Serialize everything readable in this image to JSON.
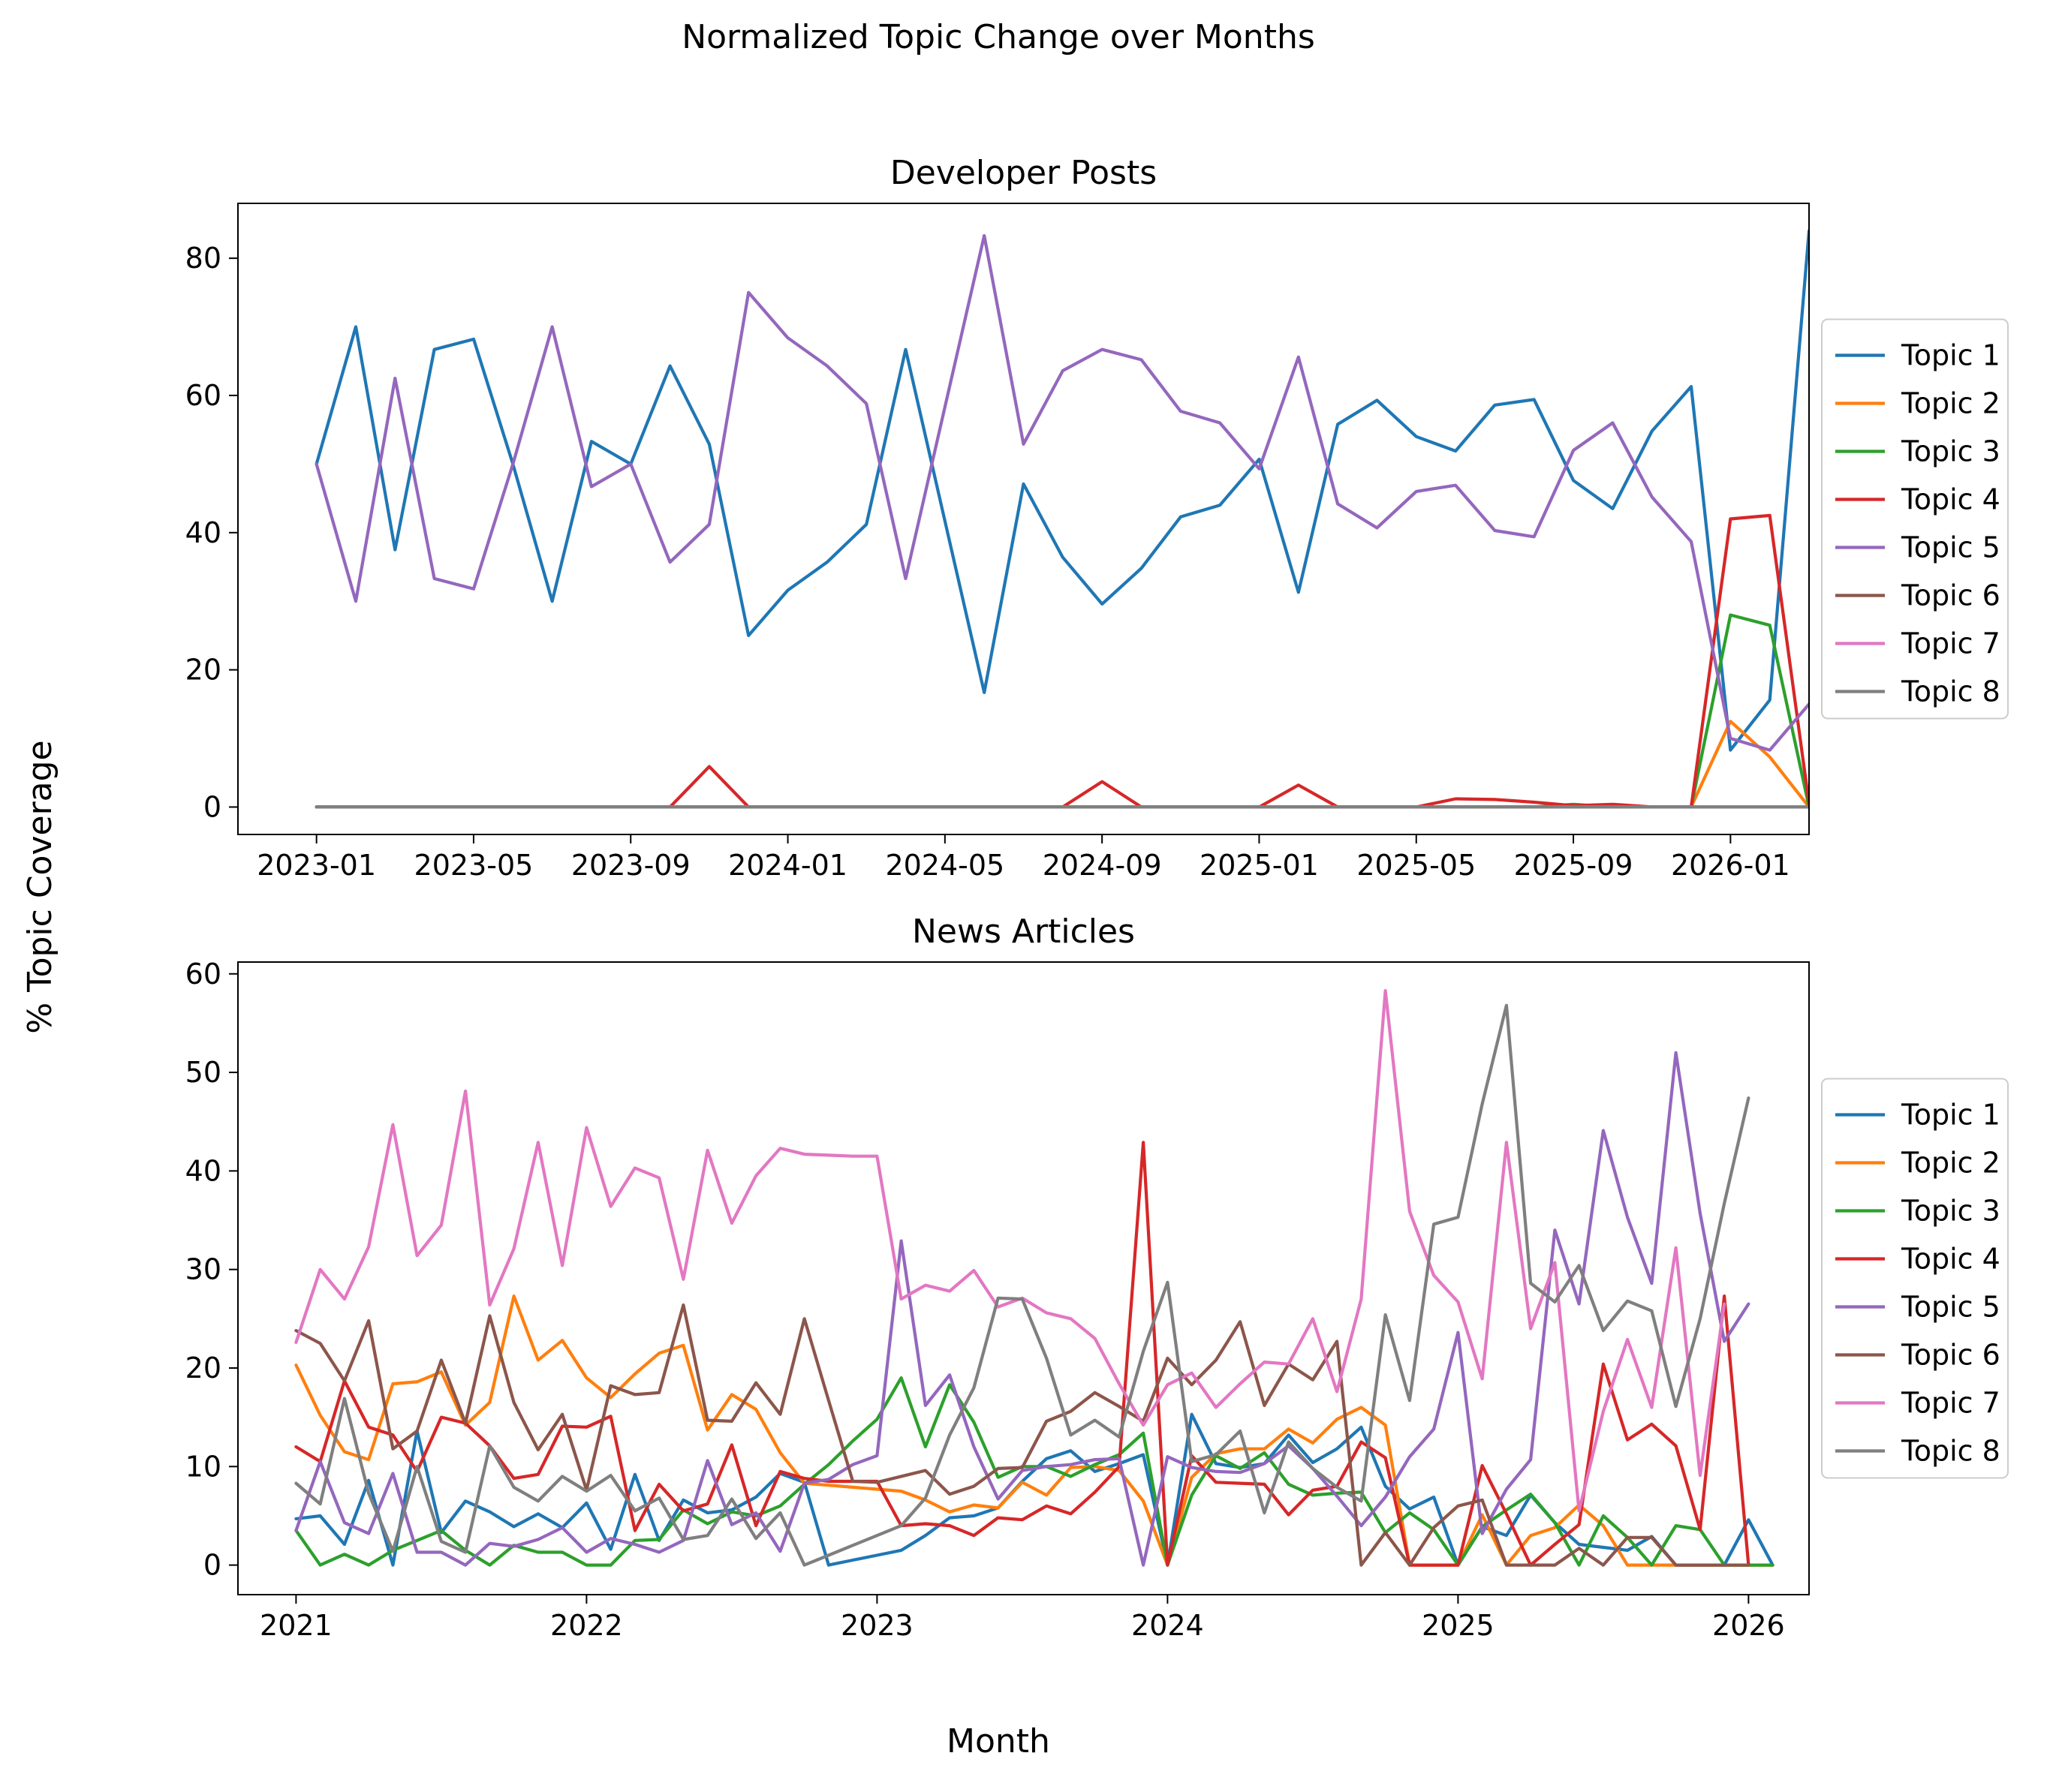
{
  "figure": {
    "suptitle": "Normalized Topic Change over Months",
    "xlabel": "Month",
    "ylabel": "% Topic Coverage"
  },
  "colors": [
    "#1f77b4",
    "#ff7f0e",
    "#2ca02c",
    "#d62728",
    "#9467bd",
    "#8c564b",
    "#e377c2",
    "#7f7f7f"
  ],
  "chart_data": [
    {
      "type": "line",
      "title": "Developer Posts",
      "legend_position": "right",
      "x_start": "2023-01",
      "x_step": "month",
      "xlim": [
        -2,
        38
      ],
      "ylim": [
        -4,
        88
      ],
      "xticks": [
        {
          "index": 0,
          "label": "2023-01"
        },
        {
          "index": 4,
          "label": "2023-05"
        },
        {
          "index": 8,
          "label": "2023-09"
        },
        {
          "index": 12,
          "label": "2024-01"
        },
        {
          "index": 16,
          "label": "2024-05"
        },
        {
          "index": 20,
          "label": "2024-09"
        },
        {
          "index": 24,
          "label": "2025-01"
        },
        {
          "index": 28,
          "label": "2025-05"
        },
        {
          "index": 32,
          "label": "2025-09"
        },
        {
          "index": 36,
          "label": "2026-01"
        }
      ],
      "yticks": [
        0,
        20,
        40,
        60,
        80
      ],
      "series": [
        {
          "name": "Topic 1",
          "values": [
            50,
            70,
            37.5,
            66.7,
            68.2,
            50,
            30,
            53.3,
            50,
            64.3,
            52.9,
            25,
            31.6,
            35.7,
            41.2,
            66.7,
            41.7,
            16.7,
            47.1,
            36.4,
            29.6,
            34.8,
            42.3,
            44,
            50.7,
            31.3,
            55.8,
            59.3,
            54,
            51.9,
            58.6,
            59.4,
            47.6,
            43.5,
            54.8,
            61.3,
            8.3,
            15.6,
            84
          ]
        },
        {
          "name": "Topic 2",
          "values": [
            0,
            0,
            0,
            0,
            0,
            0,
            0,
            0,
            0,
            0,
            0,
            0,
            0,
            0,
            0,
            0,
            0,
            0,
            0,
            0,
            0,
            0,
            0,
            0,
            0,
            0,
            0,
            0,
            0,
            0,
            0,
            0,
            0,
            0,
            0,
            0,
            12.5,
            7.3,
            0
          ]
        },
        {
          "name": "Topic 3",
          "values": [
            0,
            0,
            0,
            0,
            0,
            0,
            0,
            0,
            0,
            0,
            0,
            0,
            0,
            0,
            0,
            0,
            0,
            0,
            0,
            0,
            0,
            0,
            0,
            0,
            0,
            0,
            0,
            0,
            0,
            0,
            0,
            0,
            0.4,
            0,
            0,
            0,
            28,
            26.5,
            0
          ]
        },
        {
          "name": "Topic 4",
          "values": [
            0,
            0,
            0,
            0,
            0,
            0,
            0,
            0,
            0,
            0,
            5.9,
            0,
            0,
            0,
            0,
            0,
            0,
            0,
            0,
            0,
            3.7,
            0,
            0,
            0,
            0,
            3.2,
            0,
            0,
            0,
            1.2,
            1.1,
            0.7,
            0.2,
            0.4,
            0,
            0,
            42,
            42.5,
            0.5
          ]
        },
        {
          "name": "Topic 5",
          "values": [
            50,
            30,
            62.5,
            33.3,
            31.8,
            50,
            70,
            46.7,
            50,
            35.7,
            41.2,
            75,
            68.4,
            64.3,
            58.8,
            33.3,
            58.3,
            83.3,
            52.9,
            63.6,
            66.7,
            65.2,
            57.7,
            56,
            49.3,
            65.6,
            44.2,
            40.7,
            46,
            46.9,
            40.3,
            39.4,
            52,
            56,
            45.2,
            38.7,
            10,
            8.3,
            15
          ]
        },
        {
          "name": "Topic 6",
          "values": [
            0,
            0,
            0,
            0,
            0,
            0,
            0,
            0,
            0,
            0,
            0,
            0,
            0,
            0,
            0,
            0,
            0,
            0,
            0,
            0,
            0,
            0,
            0,
            0,
            0,
            0,
            0,
            0,
            0,
            0,
            0,
            0,
            0,
            0,
            0,
            0,
            0,
            0,
            0
          ]
        },
        {
          "name": "Topic 7",
          "values": [
            0,
            0,
            0,
            0,
            0,
            0,
            0,
            0,
            0,
            0,
            0,
            0,
            0,
            0,
            0,
            0,
            0,
            0,
            0,
            0,
            0,
            0,
            0,
            0,
            0,
            0,
            0,
            0,
            0,
            0,
            0,
            0,
            0,
            0,
            0,
            0,
            0,
            0,
            0
          ]
        },
        {
          "name": "Topic 8",
          "values": [
            0,
            0,
            0,
            0,
            0,
            0,
            0,
            0,
            0,
            0,
            0,
            0,
            0,
            0,
            0,
            0,
            0,
            0,
            0,
            0,
            0,
            0,
            0,
            0,
            0,
            0,
            0,
            0,
            0,
            0,
            0,
            0,
            0,
            0,
            0,
            0,
            0,
            0,
            0
          ]
        }
      ]
    },
    {
      "type": "line",
      "title": "News Articles",
      "legend_position": "right",
      "x_start": "2021-01",
      "x_step": "month",
      "xlim": [
        -2.4,
        62.5
      ],
      "ylim": [
        -3,
        61.2
      ],
      "xticks": [
        {
          "index": 0,
          "label": "2021"
        },
        {
          "index": 12,
          "label": "2022"
        },
        {
          "index": 24,
          "label": "2023"
        },
        {
          "index": 36,
          "label": "2024"
        },
        {
          "index": 48,
          "label": "2025"
        },
        {
          "index": 60,
          "label": "2026"
        }
      ],
      "yticks": [
        0,
        10,
        20,
        30,
        40,
        50,
        60
      ],
      "series": [
        {
          "name": "Topic 1",
          "values": [
            4.7,
            5,
            2.1,
            8.6,
            0,
            13.6,
            3.3,
            6.5,
            5.4,
            3.9,
            5.2,
            3.8,
            6.3,
            1.6,
            9.2,
            2.5,
            6.6,
            5.3,
            5.6,
            6.9,
            9.3,
            8.4,
            0,
            0.5,
            1,
            1.5,
            3,
            4.8,
            5,
            5.8,
            8.5,
            10.8,
            11.6,
            9.5,
            10.3,
            11.2,
            0,
            15.3,
            10.3,
            9.9,
            10.3,
            13.2,
            10.4,
            11.8,
            14,
            8,
            5.7,
            6.9,
            0,
            3.9,
            3,
            7.1,
            4.3,
            2.1,
            1.8,
            1.5,
            2.9,
            0,
            0,
            0,
            4.6,
            0
          ]
        },
        {
          "name": "Topic 2",
          "values": [
            20.3,
            15.2,
            11.5,
            10.7,
            18.4,
            18.6,
            19.6,
            14.2,
            16.5,
            27.3,
            20.8,
            22.8,
            19,
            17,
            19.4,
            21.5,
            22.3,
            13.7,
            17.3,
            15.8,
            11.4,
            8.3,
            8.1,
            7.9,
            7.7,
            7.5,
            6.6,
            5.4,
            6.1,
            5.8,
            8.4,
            7.1,
            9.9,
            10,
            9.6,
            6.5,
            0,
            8.9,
            11.3,
            11.8,
            11.8,
            13.8,
            12.4,
            14.8,
            16,
            14.2,
            0,
            0,
            0,
            5.1,
            0,
            3,
            3.8,
            6.1,
            4,
            0,
            0,
            0,
            0,
            0,
            0,
            0
          ]
        },
        {
          "name": "Topic 3",
          "values": [
            3.5,
            0,
            1.1,
            0,
            1.5,
            2.5,
            3.5,
            1.5,
            0,
            2,
            1.3,
            1.3,
            0,
            0,
            2.5,
            2.6,
            5.6,
            4.2,
            5.4,
            5,
            6,
            8.2,
            10.2,
            12.6,
            14.8,
            19,
            12,
            18.3,
            14.5,
            8.9,
            10,
            10,
            9,
            10.2,
            11.2,
            13.4,
            0,
            7.1,
            11.1,
            9.8,
            11.4,
            8.2,
            7.1,
            7.3,
            7.4,
            3.3,
            5.3,
            3.6,
            0,
            3.9,
            5.6,
            7.2,
            4.3,
            0,
            5,
            2.8,
            0,
            4,
            3.6,
            0,
            0,
            0
          ]
        },
        {
          "name": "Topic 4",
          "values": [
            12,
            10.5,
            18.7,
            14,
            13.2,
            9.5,
            15,
            14.4,
            12.1,
            8.8,
            9.2,
            14.1,
            14,
            15.1,
            3.5,
            8.2,
            5.5,
            6.2,
            12.2,
            4,
            9.5,
            8.8,
            8.5,
            8.5,
            8.5,
            4,
            4.2,
            4,
            3,
            4.8,
            4.6,
            6,
            5.2,
            7.4,
            10,
            42.9,
            0,
            11.1,
            8.4,
            8.3,
            8.2,
            5.1,
            7.6,
            8,
            12.5,
            10.9,
            0,
            0,
            0,
            10.1,
            5.2,
            0,
            2.1,
            4.1,
            20.4,
            12.7,
            14.3,
            12.1,
            3.6,
            27.3,
            0
          ]
        },
        {
          "name": "Topic 5",
          "values": [
            3.5,
            10.5,
            4.3,
            3.2,
            9.3,
            1.3,
            1.3,
            0,
            2.2,
            1.9,
            2.6,
            3.8,
            1.3,
            2.7,
            2.1,
            1.3,
            2.5,
            10.6,
            4.1,
            5.3,
            1.4,
            8.3,
            8.7,
            10.2,
            11.1,
            32.9,
            16.2,
            19.3,
            12,
            6.7,
            9.6,
            10,
            10.2,
            10.7,
            10.8,
            0,
            11,
            9.9,
            9.5,
            9.4,
            10.3,
            12.1,
            9.8,
            7,
            4,
            6.9,
            11,
            13.8,
            23.6,
            3.2,
            7.7,
            10.7,
            34,
            26.5,
            44.1,
            35.3,
            28.6,
            52,
            35.7,
            22.7,
            26.5
          ]
        },
        {
          "name": "Topic 6",
          "values": [
            23.8,
            22.5,
            18.7,
            24.8,
            11.8,
            13.6,
            20.8,
            14.4,
            25.3,
            16.5,
            11.7,
            15.3,
            7.6,
            18.2,
            17.3,
            17.5,
            26.4,
            14.7,
            14.6,
            18.5,
            15.3,
            25,
            16.7,
            8.5,
            8.4,
            9,
            9.6,
            7.2,
            8,
            9.8,
            9.9,
            14.6,
            15.6,
            17.5,
            16.1,
            14.6,
            21,
            18.3,
            20.8,
            24.7,
            16.2,
            20.4,
            18.8,
            22.7,
            0,
            3.3,
            0,
            3.8,
            6,
            6.6,
            0,
            0,
            0,
            1.7,
            0,
            2.8,
            2.8,
            0,
            0,
            0,
            0
          ]
        },
        {
          "name": "Topic 7",
          "values": [
            22.6,
            30,
            27,
            32.3,
            44.7,
            31.4,
            34.5,
            48.1,
            26.4,
            32.1,
            42.9,
            30.4,
            44.4,
            36.4,
            40.3,
            39.3,
            29,
            42.1,
            34.7,
            39.5,
            42.3,
            41.7,
            41.6,
            41.5,
            41.5,
            27,
            28.4,
            27.8,
            29.9,
            26.2,
            27.1,
            25.6,
            25,
            23,
            18.4,
            14.2,
            18.3,
            19.5,
            16,
            18.4,
            20.6,
            20.4,
            25,
            17.6,
            27,
            58.3,
            35.9,
            29.4,
            26.7,
            18.9,
            42.9,
            24,
            30.7,
            5.5,
            15.6,
            22.9,
            16,
            32.2,
            9.1,
            26.5
          ]
        },
        {
          "name": "Topic 8",
          "values": [
            8.3,
            6.2,
            16.9,
            7.3,
            1.4,
            10,
            2.4,
            1.3,
            12.1,
            7.9,
            6.5,
            9,
            7.5,
            9.1,
            5.5,
            6.8,
            2.6,
            3,
            6.7,
            2.7,
            5.3,
            0,
            1,
            2,
            3,
            4,
            6.8,
            13.2,
            18,
            27.1,
            27,
            21,
            13.2,
            14.7,
            13,
            21.7,
            28.7,
            10.5,
            11.2,
            13.6,
            5.3,
            12.5,
            9.8,
            7.9,
            6.5,
            25.4,
            16.7,
            34.6,
            35.3,
            46.8,
            56.8,
            28.6,
            26.7,
            30.4,
            23.8,
            26.8,
            25.8,
            16.1,
            25,
            36.7,
            47.4
          ]
        }
      ]
    }
  ]
}
